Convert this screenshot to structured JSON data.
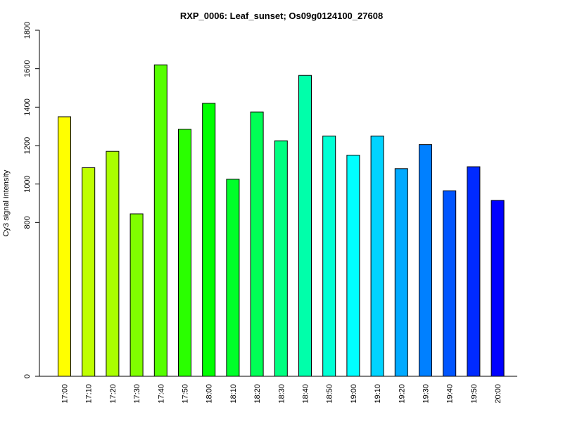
{
  "chart_data": {
    "type": "bar",
    "title": "RXP_0006: Leaf_sunset; Os09g0124100_27608",
    "xlabel": "",
    "ylabel": "Cy3 signal intensity",
    "ylim": [
      0,
      1800
    ],
    "yticks": [
      0,
      800,
      1000,
      1200,
      1400,
      1600,
      1800
    ],
    "categories": [
      "17:00",
      "17:10",
      "17:20",
      "17:30",
      "17:40",
      "17:50",
      "18:00",
      "18:10",
      "18:20",
      "18:30",
      "18:40",
      "18:50",
      "19:00",
      "19:10",
      "19:20",
      "19:30",
      "19:40",
      "19:50",
      "20:00"
    ],
    "values": [
      1350,
      1085,
      1170,
      845,
      1620,
      1285,
      1420,
      1025,
      1375,
      1225,
      1565,
      1250,
      1150,
      1250,
      1080,
      1205,
      965,
      1090,
      915
    ],
    "colors": [
      "#ffff00",
      "#bfff00",
      "#aaff00",
      "#80ff00",
      "#55ff00",
      "#2aff00",
      "#00ff00",
      "#00ff2a",
      "#00ff55",
      "#00ff80",
      "#00ffaa",
      "#00ffd4",
      "#00ffff",
      "#00d4ff",
      "#00aaff",
      "#0080ff",
      "#0055ff",
      "#002aff",
      "#0000ff"
    ],
    "grid": false,
    "legend": "none"
  }
}
